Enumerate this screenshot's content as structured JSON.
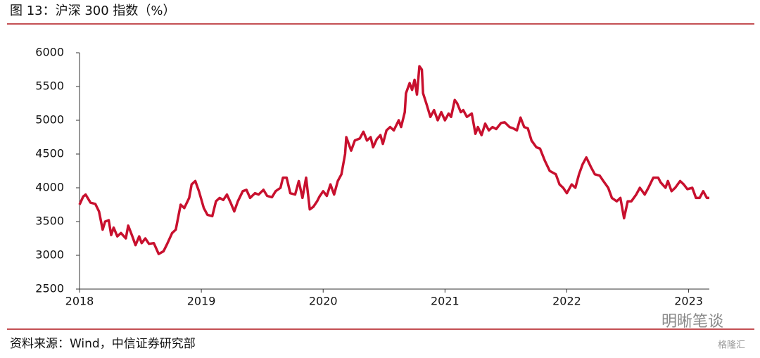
{
  "chart_data": {
    "type": "line",
    "title": "图 13：沪深 300 指数（%）",
    "source": "资料来源：Wind，中信证券研究部",
    "watermark": "明晰笔谈",
    "watermark2": "格隆汇",
    "x": [
      2018.0,
      2018.03,
      2018.05,
      2018.09,
      2018.13,
      2018.16,
      2018.19,
      2018.21,
      2018.24,
      2018.26,
      2018.28,
      2018.31,
      2018.34,
      2018.38,
      2018.4,
      2018.43,
      2018.46,
      2018.49,
      2018.51,
      2018.54,
      2018.57,
      2018.61,
      2018.65,
      2018.69,
      2018.72,
      2018.76,
      2018.79,
      2018.83,
      2018.86,
      2018.9,
      2018.92,
      2018.95,
      2018.98,
      2019.02,
      2019.05,
      2019.09,
      2019.12,
      2019.15,
      2019.18,
      2019.21,
      2019.24,
      2019.27,
      2019.3,
      2019.34,
      2019.37,
      2019.4,
      2019.44,
      2019.47,
      2019.51,
      2019.54,
      2019.58,
      2019.61,
      2019.65,
      2019.67,
      2019.7,
      2019.73,
      2019.77,
      2019.8,
      2019.83,
      2019.86,
      2019.89,
      2019.92,
      2019.95,
      2019.97,
      2020.0,
      2020.03,
      2020.06,
      2020.09,
      2020.12,
      2020.15,
      2020.18,
      2020.19,
      2020.22,
      2020.23,
      2020.26,
      2020.3,
      2020.33,
      2020.36,
      2020.39,
      2020.41,
      2020.44,
      2020.47,
      2020.49,
      2020.52,
      2020.55,
      2020.58,
      2020.62,
      2020.64,
      2020.67,
      2020.68,
      2020.71,
      2020.73,
      2020.75,
      2020.77,
      2020.79,
      2020.81,
      2020.82,
      2020.85,
      2020.88,
      2020.91,
      2020.94,
      2020.97,
      2021.0,
      2021.03,
      2021.05,
      2021.08,
      2021.1,
      2021.13,
      2021.15,
      2021.18,
      2021.22,
      2021.25,
      2021.27,
      2021.3,
      2021.33,
      2021.36,
      2021.39,
      2021.42,
      2021.46,
      2021.49,
      2021.53,
      2021.56,
      2021.59,
      2021.62,
      2021.65,
      2021.68,
      2021.71,
      2021.75,
      2021.78,
      2021.82,
      2021.86,
      2021.91,
      2021.94,
      2021.97,
      2022.0,
      2022.04,
      2022.07,
      2022.1,
      2022.13,
      2022.16,
      2022.2,
      2022.23,
      2022.27,
      2022.3,
      2022.34,
      2022.37,
      2022.41,
      2022.44,
      2022.47,
      2022.5,
      2022.53,
      2022.57,
      2022.6,
      2022.64,
      2022.67,
      2022.71,
      2022.75,
      2022.77,
      2022.81,
      2022.83,
      2022.86,
      2022.89,
      2022.93,
      2022.96,
      2022.99,
      2023.03,
      2023.06,
      2023.09,
      2023.12,
      2023.15,
      2023.17
    ],
    "series": [
      {
        "name": "沪深300",
        "color": "#c8102e",
        "values": [
          3750,
          3870,
          3900,
          3780,
          3760,
          3650,
          3380,
          3500,
          3520,
          3300,
          3410,
          3280,
          3330,
          3250,
          3440,
          3300,
          3150,
          3280,
          3180,
          3250,
          3170,
          3180,
          3020,
          3060,
          3170,
          3330,
          3380,
          3750,
          3700,
          3850,
          4050,
          4100,
          3950,
          3700,
          3600,
          3580,
          3800,
          3850,
          3820,
          3900,
          3780,
          3650,
          3800,
          3950,
          3970,
          3850,
          3920,
          3900,
          3970,
          3880,
          3860,
          3950,
          4000,
          4150,
          4150,
          3920,
          3900,
          4100,
          3850,
          4150,
          3680,
          3720,
          3800,
          3870,
          3950,
          3880,
          4050,
          3900,
          4100,
          4200,
          4500,
          4750,
          4600,
          4550,
          4700,
          4730,
          4830,
          4700,
          4750,
          4600,
          4720,
          4780,
          4650,
          4850,
          4900,
          4850,
          5000,
          4900,
          5120,
          5400,
          5550,
          5450,
          5600,
          5380,
          5800,
          5750,
          5400,
          5230,
          5050,
          5150,
          5000,
          5120,
          5000,
          5100,
          5050,
          5300,
          5250,
          5120,
          5150,
          5050,
          5100,
          4800,
          4900,
          4780,
          4950,
          4850,
          4900,
          4870,
          4960,
          4970,
          4900,
          4880,
          4850,
          5040,
          4900,
          4880,
          4700,
          4600,
          4580,
          4400,
          4250,
          4200,
          4050,
          4000,
          3920,
          4050,
          4000,
          4200,
          4350,
          4450,
          4300,
          4200,
          4180,
          4100,
          4000,
          3850,
          3800,
          3850,
          3550,
          3800,
          3800,
          3900,
          4000,
          3900,
          4000,
          4150,
          4150,
          4080,
          4000,
          4100,
          3950,
          4000,
          4100,
          4050,
          3980,
          4000,
          3850,
          3850,
          3950,
          3850,
          3850
        ]
      }
    ],
    "xlim": [
      2018,
      2023.17
    ],
    "xticks": [
      2018,
      2019,
      2020,
      2021,
      2022,
      2023
    ],
    "ylim": [
      2500,
      6000
    ],
    "yticks": [
      2500,
      3000,
      3500,
      4000,
      4500,
      5000,
      5500,
      6000
    ],
    "grid": false
  }
}
